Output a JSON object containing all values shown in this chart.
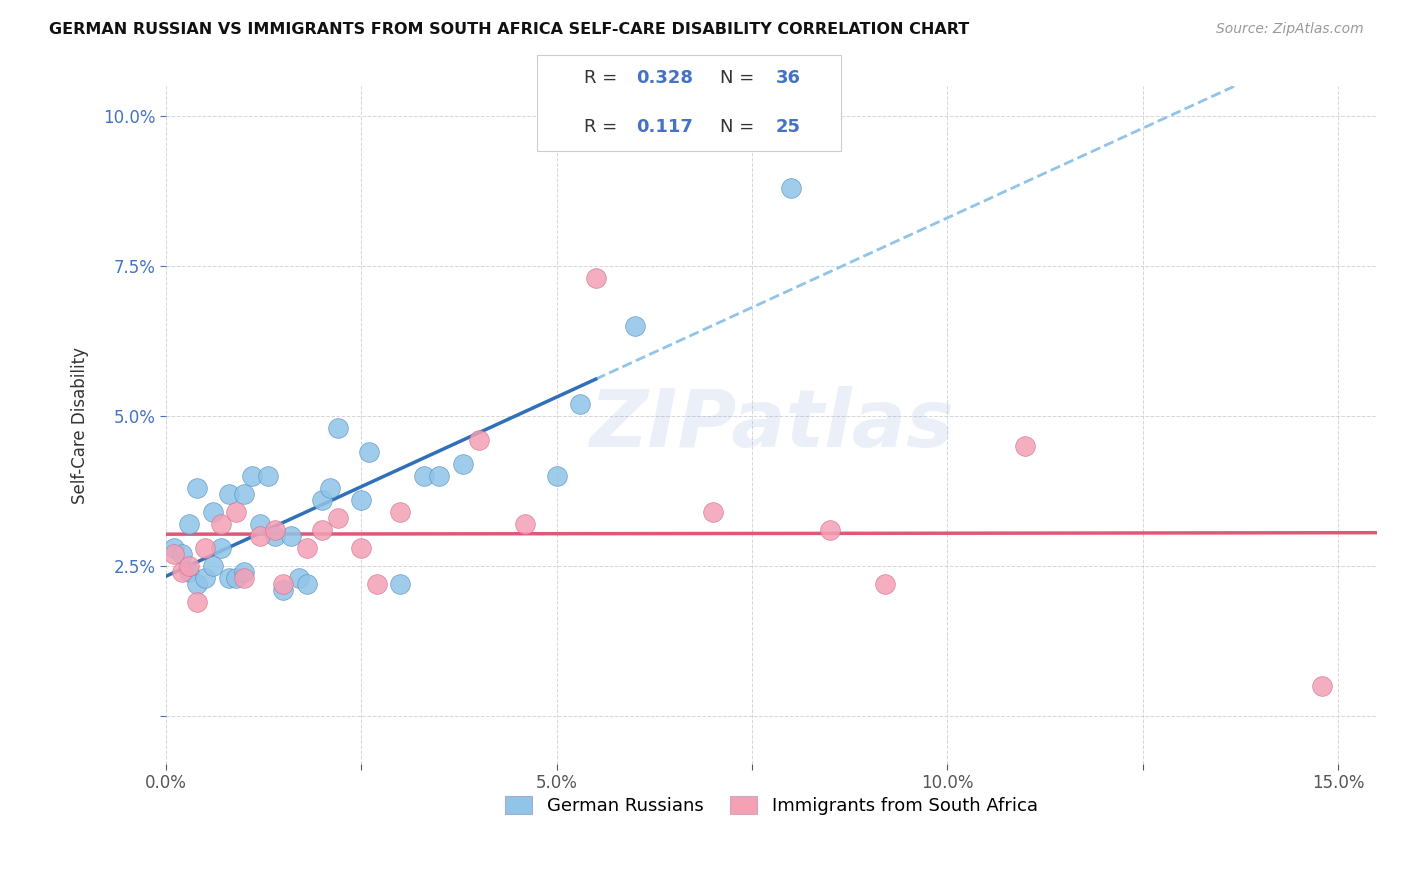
{
  "title": "GERMAN RUSSIAN VS IMMIGRANTS FROM SOUTH AFRICA SELF-CARE DISABILITY CORRELATION CHART",
  "source": "Source: ZipAtlas.com",
  "ylabel": "Self-Care Disability",
  "xlim": [
    0.0,
    0.155
  ],
  "ylim": [
    -0.008,
    0.105
  ],
  "blue_R": "0.328",
  "blue_N": "36",
  "pink_R": "0.117",
  "pink_N": "25",
  "blue_color": "#90c4e8",
  "pink_color": "#f4a0b5",
  "blue_line_color": "#3070b8",
  "pink_line_color": "#e05878",
  "dashed_line_color": "#90c4e8",
  "watermark": "ZIPatlas",
  "blue_scatter_x": [
    0.001,
    0.002,
    0.003,
    0.003,
    0.004,
    0.004,
    0.005,
    0.006,
    0.006,
    0.007,
    0.008,
    0.008,
    0.009,
    0.01,
    0.01,
    0.011,
    0.012,
    0.013,
    0.014,
    0.015,
    0.016,
    0.017,
    0.018,
    0.02,
    0.021,
    0.022,
    0.025,
    0.026,
    0.03,
    0.033,
    0.035,
    0.038,
    0.05,
    0.053,
    0.06,
    0.08
  ],
  "blue_scatter_y": [
    0.028,
    0.027,
    0.024,
    0.032,
    0.022,
    0.038,
    0.023,
    0.025,
    0.034,
    0.028,
    0.023,
    0.037,
    0.023,
    0.024,
    0.037,
    0.04,
    0.032,
    0.04,
    0.03,
    0.021,
    0.03,
    0.023,
    0.022,
    0.036,
    0.038,
    0.048,
    0.036,
    0.044,
    0.022,
    0.04,
    0.04,
    0.042,
    0.04,
    0.052,
    0.065,
    0.088
  ],
  "pink_scatter_x": [
    0.001,
    0.002,
    0.003,
    0.004,
    0.005,
    0.007,
    0.009,
    0.01,
    0.012,
    0.014,
    0.015,
    0.018,
    0.02,
    0.022,
    0.025,
    0.027,
    0.03,
    0.04,
    0.046,
    0.055,
    0.07,
    0.085,
    0.092,
    0.11,
    0.148
  ],
  "pink_scatter_y": [
    0.027,
    0.024,
    0.025,
    0.019,
    0.028,
    0.032,
    0.034,
    0.023,
    0.03,
    0.031,
    0.022,
    0.028,
    0.031,
    0.033,
    0.028,
    0.022,
    0.034,
    0.046,
    0.032,
    0.073,
    0.034,
    0.031,
    0.022,
    0.045,
    0.005
  ],
  "background_color": "#ffffff",
  "grid_color": "#cccccc",
  "blue_line_x0": 0.0,
  "blue_line_y0": 0.022,
  "blue_line_x1": 0.055,
  "blue_line_y1": 0.05,
  "pink_line_x0": 0.0,
  "pink_line_y0": 0.025,
  "pink_line_x1": 0.155,
  "pink_line_y1": 0.035
}
